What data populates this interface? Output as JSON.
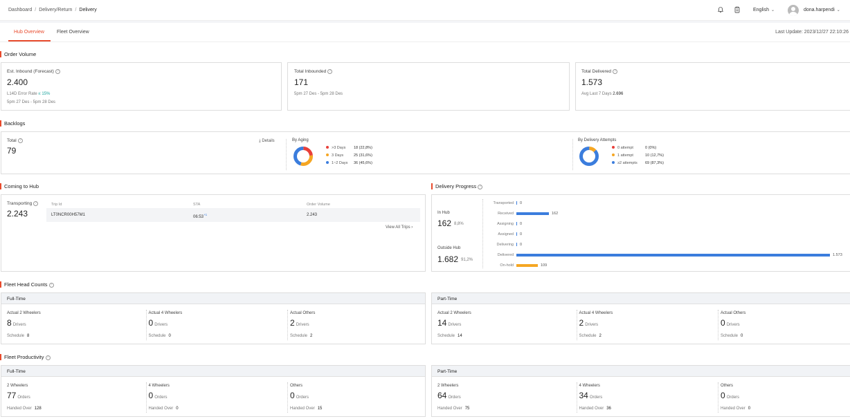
{
  "breadcrumb": {
    "items": [
      "Dashboard",
      "Delivery/Return",
      "Delivery"
    ]
  },
  "header": {
    "language": "English",
    "username": "dona.harpendi",
    "icons": [
      "bell-icon",
      "clipboard-icon",
      "chevron-down-icon",
      "user-avatar"
    ]
  },
  "tabs": [
    {
      "label": "Hub Overview",
      "active": true
    },
    {
      "label": "Fleet Overview",
      "active": false
    }
  ],
  "last_update": "Last Update: 2023/12/27 22:10:26",
  "colors": {
    "accent": "#e84a2c",
    "blue": "#3b7ddd",
    "amber": "#f5a623",
    "red": "#e8403a",
    "teal": "#1aa39c"
  },
  "order_volume": {
    "title": "Order Volume",
    "est_inbound": {
      "label": "Est. Inbound (Forecast)",
      "value": "2.400",
      "error_label": "L14D Error Rate",
      "error_value": "≤ 15%",
      "range": "5pm 27 Des - 5pm 28 Des"
    },
    "total_inbounded": {
      "label": "Total Inbounded",
      "value": "171",
      "range": "5pm 27 Des - 5pm 28 Des"
    },
    "total_delivered": {
      "label": "Total Delivered",
      "value": "1.573",
      "avg_label": "Avg Last 7 Days",
      "avg_value": "2.696"
    }
  },
  "backlogs": {
    "title": "Backlogs",
    "total_label": "Total",
    "total_value": "79",
    "details": "Details",
    "aging": {
      "title": "By Aging",
      "items": [
        {
          "label": ">3 Days",
          "value": "18 (22,8%)",
          "fraction": 0.228,
          "color": "#e8403a"
        },
        {
          "label": "3 Days",
          "value": "25 (31,6%)",
          "fraction": 0.316,
          "color": "#f5a623"
        },
        {
          "label": "1~2 Days",
          "value": "36 (45,6%)",
          "fraction": 0.456,
          "color": "#3b7ddd"
        }
      ]
    },
    "attempts": {
      "title": "By Delivery Attempts",
      "items": [
        {
          "label": "0 attempt",
          "value": "0 (0%)",
          "fraction": 0.0,
          "color": "#e8403a"
        },
        {
          "label": "1 attempt",
          "value": "10 (12,7%)",
          "fraction": 0.127,
          "color": "#f5a623"
        },
        {
          "label": "≥2 attempts",
          "value": "69 (87,3%)",
          "fraction": 0.873,
          "color": "#3b7ddd"
        }
      ]
    }
  },
  "coming_to_hub": {
    "title": "Coming to Hub",
    "transporting_label": "Transporting",
    "transporting_value": "2.243",
    "columns": [
      "Trip Id",
      "STA",
      "Order Volume"
    ],
    "rows": [
      {
        "trip": "LT0NCR00H57M1",
        "sta": "06:53",
        "sta_sup": "+1",
        "volume": "2.243"
      }
    ],
    "view_all": "View All Trips"
  },
  "delivery_progress": {
    "title": "Delivery Progress",
    "in_hub_label": "In Hub",
    "in_hub_value": "162",
    "in_hub_pct": "8,8%",
    "outside_label": "Outside Hub",
    "outside_value": "1.682",
    "outside_pct": "91,2%",
    "max": 1573,
    "stages": [
      {
        "label": "Transported",
        "value": "0",
        "n": 0,
        "color": "#3b7ddd"
      },
      {
        "label": "Received",
        "value": "162",
        "n": 162,
        "color": "#3b7ddd"
      },
      {
        "label": "Assigning",
        "value": "0",
        "n": 0,
        "color": "#3b7ddd"
      },
      {
        "label": "Assigned",
        "value": "0",
        "n": 0,
        "color": "#3b7ddd"
      },
      {
        "label": "Delivering",
        "value": "0",
        "n": 0,
        "color": "#3b7ddd"
      },
      {
        "label": "Delivered",
        "value": "1.573",
        "n": 1573,
        "color": "#3b7ddd"
      },
      {
        "label": "On-hold",
        "value": "109",
        "n": 109,
        "color": "#f5a623"
      }
    ]
  },
  "fleet_head_counts": {
    "title": "Fleet Head Counts",
    "full_time": {
      "title": "Full-Time",
      "items": [
        {
          "label": "Actual 2 Wheelers",
          "value": "8",
          "unit": "Drivers",
          "sub_label": "Schedule",
          "sub_value": "8"
        },
        {
          "label": "Actual 4 Wheelers",
          "value": "0",
          "unit": "Drivers",
          "sub_label": "Schedule",
          "sub_value": "0"
        },
        {
          "label": "Actual Others",
          "value": "2",
          "unit": "Drivers",
          "sub_label": "Schedule",
          "sub_value": "2"
        }
      ]
    },
    "part_time": {
      "title": "Part-Time",
      "items": [
        {
          "label": "Actual 2 Wheelers",
          "value": "14",
          "unit": "Drivers",
          "sub_label": "Schedule",
          "sub_value": "14"
        },
        {
          "label": "Actual 4 Wheelers",
          "value": "2",
          "unit": "Drivers",
          "sub_label": "Schedule",
          "sub_value": "2"
        },
        {
          "label": "Actual Others",
          "value": "0",
          "unit": "Drivers",
          "sub_label": "Schedule",
          "sub_value": "0"
        }
      ]
    }
  },
  "fleet_productivity": {
    "title": "Fleet Productivity",
    "full_time": {
      "title": "Full-Time",
      "items": [
        {
          "label": "2 Wheelers",
          "value": "77",
          "unit": "Orders",
          "sub_label": "Handed Over",
          "sub_value": "128"
        },
        {
          "label": "4 Wheelers",
          "value": "0",
          "unit": "Orders",
          "sub_label": "Handed Over",
          "sub_value": "0"
        },
        {
          "label": "Others",
          "value": "0",
          "unit": "Orders",
          "sub_label": "Handed Over",
          "sub_value": "15"
        }
      ]
    },
    "part_time": {
      "title": "Part-Time",
      "items": [
        {
          "label": "2 Wheelers",
          "value": "64",
          "unit": "Orders",
          "sub_label": "Handed Over",
          "sub_value": "75"
        },
        {
          "label": "4 Wheelers",
          "value": "34",
          "unit": "Orders",
          "sub_label": "Handed Over",
          "sub_value": "36"
        },
        {
          "label": "Others",
          "value": "0",
          "unit": "Orders",
          "sub_label": "Handed Over",
          "sub_value": "0"
        }
      ]
    }
  }
}
